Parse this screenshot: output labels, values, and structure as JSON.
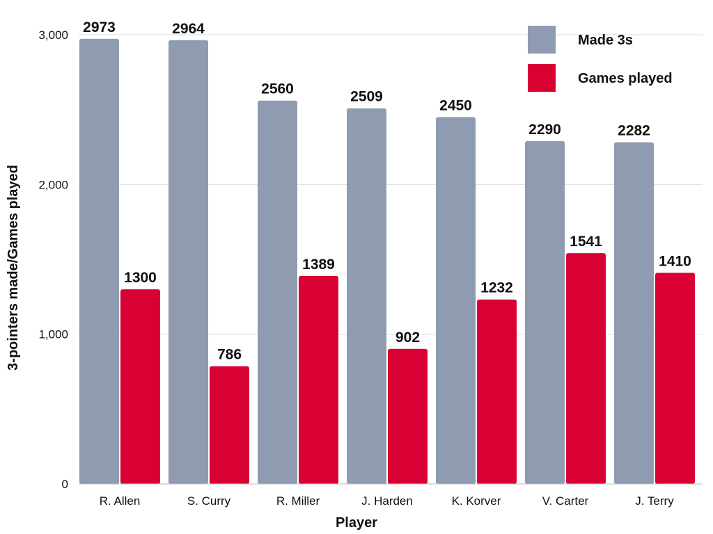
{
  "chart_data": {
    "type": "bar",
    "xlabel": "Player",
    "ylabel": "3-pointers made/Games played",
    "categories": [
      "R. Allen",
      "S. Curry",
      "R. Miller",
      "J. Harden",
      "K. Korver",
      "V. Carter",
      "J. Terry"
    ],
    "series": [
      {
        "name": "Made 3s",
        "color": "#8e9bb1",
        "values": [
          2973,
          2964,
          2560,
          2509,
          2450,
          2290,
          2282
        ]
      },
      {
        "name": "Games played",
        "color": "#d90033",
        "values": [
          1300,
          786,
          1389,
          902,
          1232,
          1541,
          1410
        ]
      }
    ],
    "ylim": [
      0,
      3000
    ],
    "yticks": [
      0,
      1000,
      2000,
      3000
    ],
    "ytick_labels": [
      "0",
      "1,000",
      "2,000",
      "3,000"
    ],
    "grid": true,
    "legend_position": "top-right"
  }
}
